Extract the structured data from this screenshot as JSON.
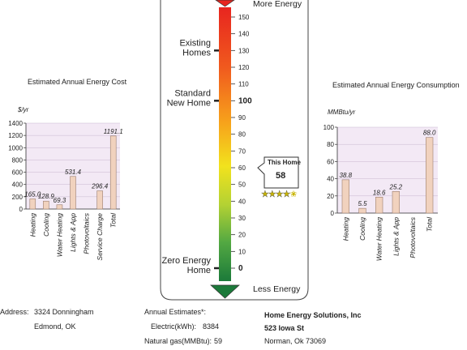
{
  "scale": {
    "top_label": "More Energy",
    "bottom_label": "Less Energy",
    "ticks": [
      150,
      140,
      130,
      120,
      110,
      100,
      90,
      80,
      70,
      60,
      50,
      40,
      30,
      20,
      10,
      0
    ],
    "markers": [
      {
        "label_line1": "Existing",
        "label_line2": "Homes",
        "value": 130
      },
      {
        "label_line1": "Standard",
        "label_line2": "New Home",
        "value": 100
      },
      {
        "label_line1": "Zero Energy",
        "label_line2": "Home",
        "value": 0
      }
    ],
    "this_home": {
      "label": "This Home",
      "value": 58
    },
    "stars": 4.5,
    "star_color": "#c8b400"
  },
  "cost": {
    "title": "Estimated Annual Energy Cost",
    "unit": "$/yr"
  },
  "consumption": {
    "title": "Estimated Annual Energy Consumption",
    "unit": "MMBtu/yr"
  },
  "chart_data": [
    {
      "type": "bar",
      "title": "Estimated Annual Energy Cost",
      "ylabel": "$/yr",
      "ylim": [
        0,
        1400
      ],
      "yticks": [
        0,
        200,
        400,
        600,
        800,
        1000,
        1200,
        1400
      ],
      "categories": [
        "Heating",
        "Cooling",
        "Water Heating",
        "Lights & App",
        "Photovoltaics",
        "Service Charge",
        "Total"
      ],
      "values": [
        165.0,
        128.9,
        69.3,
        531.4,
        null,
        296.4,
        1191.1
      ],
      "labels": [
        "165.0",
        "128.9",
        "69.3",
        "531.4",
        "",
        "296.4",
        "1191.1"
      ],
      "bar_color": "#f1d2be",
      "bg_color": "#f3e9f5"
    },
    {
      "type": "bar",
      "title": "Estimated Annual Energy Consumption",
      "ylabel": "MMBtu/yr",
      "ylim": [
        0,
        100
      ],
      "yticks": [
        0,
        20,
        40,
        60,
        80,
        100
      ],
      "categories": [
        "Heating",
        "Cooling",
        "Water Heating",
        "Lights & App",
        "Photovoltaics",
        "Total"
      ],
      "values": [
        38.8,
        5.5,
        18.6,
        25.2,
        null,
        88.0
      ],
      "labels": [
        "38.8",
        "5.5",
        "18.6",
        "25.2",
        "",
        "88.0"
      ],
      "bar_color": "#f1d2be",
      "bg_color": "#f3e9f5"
    }
  ],
  "address": {
    "label": "Address:",
    "line1": "3324 Donningham",
    "line2": "Edmond, OK"
  },
  "estimates": {
    "title": "Annual Estimates*:",
    "electric_label": "Electric(kWh):",
    "electric_value": "8384",
    "gas_label": "Natural gas(MMBtu):",
    "gas_value": "59"
  },
  "company": {
    "name": "Home Energy Solutions, Inc",
    "street": "523 Iowa St",
    "city": "Norman, Ok 73069"
  }
}
